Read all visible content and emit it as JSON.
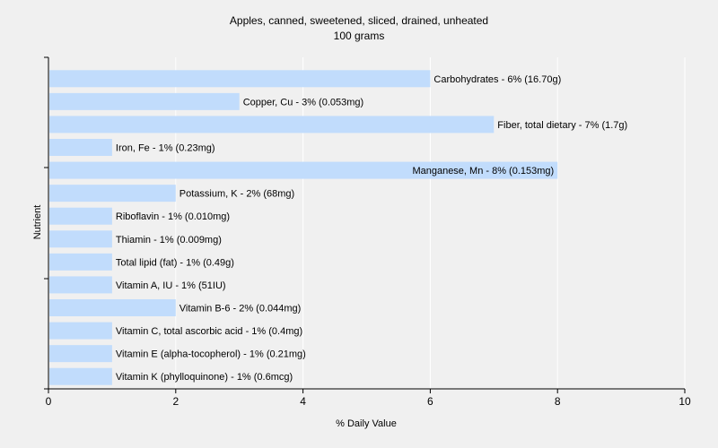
{
  "chart_data": {
    "type": "bar",
    "orientation": "horizontal",
    "title": "Apples, canned, sweetened, sliced, drained, unheated",
    "subtitle": "100 grams",
    "xlabel": "% Daily Value",
    "ylabel": "Nutrient",
    "xlim": [
      0,
      10
    ],
    "xticks": [
      0,
      2,
      4,
      6,
      8,
      10
    ],
    "grid": true,
    "categories": [
      "Carbohydrates",
      "Copper, Cu",
      "Fiber, total dietary",
      "Iron, Fe",
      "Manganese, Mn",
      "Potassium, K",
      "Riboflavin",
      "Thiamin",
      "Total lipid (fat)",
      "Vitamin A, IU",
      "Vitamin B-6",
      "Vitamin C, total ascorbic acid",
      "Vitamin E (alpha-tocopherol)",
      "Vitamin K (phylloquinone)"
    ],
    "values": [
      6,
      3,
      7,
      1,
      8,
      2,
      1,
      1,
      1,
      1,
      2,
      1,
      1,
      1
    ],
    "labels": [
      "Carbohydrates - 6% (16.70g)",
      "Copper, Cu - 3% (0.053mg)",
      "Fiber, total dietary - 7% (1.7g)",
      "Iron, Fe - 1% (0.23mg)",
      "Manganese, Mn - 8% (0.153mg)",
      "Potassium, K - 2% (68mg)",
      "Riboflavin - 1% (0.010mg)",
      "Thiamin - 1% (0.009mg)",
      "Total lipid (fat) - 1% (0.49g)",
      "Vitamin A, IU - 1% (51IU)",
      "Vitamin B-6 - 2% (0.044mg)",
      "Vitamin C, total ascorbic acid - 1% (0.4mg)",
      "Vitamin E (alpha-tocopherol) - 1% (0.21mg)",
      "Vitamin K (phylloquinone) - 1% (0.6mcg)"
    ],
    "colors": {
      "background": "#f0f0f0",
      "plot_background": "#f0f0f0",
      "bar": "#c1dcfc",
      "grid": "#ffffff",
      "axis": "#000000"
    }
  }
}
